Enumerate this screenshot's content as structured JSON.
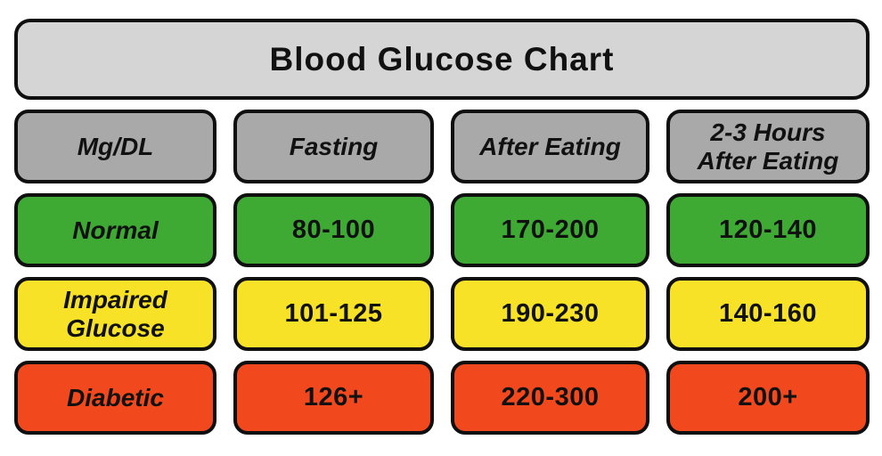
{
  "colors": {
    "title_bg": "#d5d5d5",
    "header_bg": "#a9a9a9",
    "normal_bg": "#3eaa34",
    "impaired_bg": "#f7e228",
    "diabetic_bg": "#f1491d",
    "border": "#0f0f0f",
    "text": "#111111",
    "page_bg": "#ffffff"
  },
  "chart_data": {
    "type": "table",
    "title": "Blood Glucose Chart",
    "unit": "Mg/DL",
    "columns": [
      "Mg/DL",
      "Fasting",
      "After Eating",
      "2-3 Hours After Eating"
    ],
    "rows": [
      {
        "label": "Normal",
        "color": "#3eaa34",
        "values": [
          "80-100",
          "170-200",
          "120-140"
        ]
      },
      {
        "label": "Impaired Glucose",
        "color": "#f7e228",
        "values": [
          "101-125",
          "190-230",
          "140-160"
        ]
      },
      {
        "label": "Diabetic",
        "color": "#f1491d",
        "values": [
          "126+",
          "220-300",
          "200+"
        ]
      }
    ]
  }
}
